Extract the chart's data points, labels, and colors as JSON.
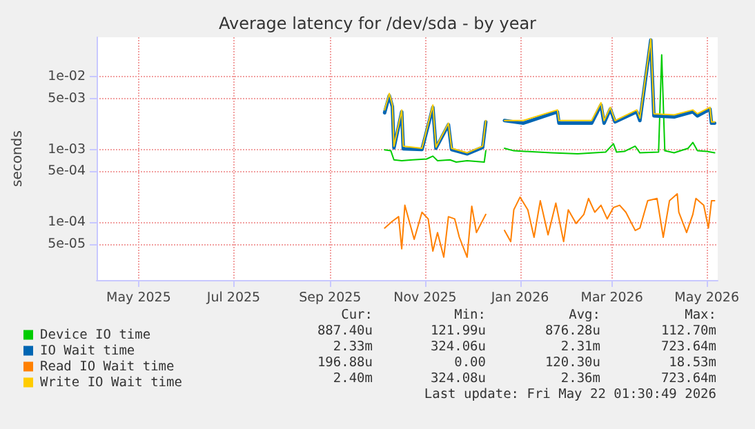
{
  "chart_data": {
    "type": "line",
    "title": "Average latency for /dev/sda - by year",
    "ylabel": "seconds",
    "log": "y",
    "grid": true,
    "legend": "bottom",
    "marker": "none",
    "line_style": "solid",
    "xlim": [
      "2025-04-19",
      "2026-05-23"
    ],
    "xticks": [
      {
        "value": "2025-05-16",
        "label": "May 2025"
      },
      {
        "value": "2025-07-16",
        "label": "Jul 2025"
      },
      {
        "value": "2025-09-16",
        "label": "Sep 2025"
      },
      {
        "value": "2025-11-16",
        "label": "Nov 2025"
      },
      {
        "value": "2026-01-16",
        "label": "Jan 2026"
      },
      {
        "value": "2026-03-16",
        "label": "Mar 2026"
      },
      {
        "value": "2026-05-16",
        "label": "May 2026"
      }
    ],
    "ylim": [
      1.6e-05,
      0.035
    ],
    "yticks": [
      {
        "value": 5e-05,
        "label": "5e-05"
      },
      {
        "value": 0.0001,
        "label": "1e-04"
      },
      {
        "value": 0.0005,
        "label": "5e-04"
      },
      {
        "value": 0.001,
        "label": "1e-03"
      },
      {
        "value": 0.005,
        "label": "5e-03"
      },
      {
        "value": 0.01,
        "label": "1e-02"
      }
    ],
    "series": [
      {
        "name": "Device IO time",
        "color": "#00cc00",
        "x": [
          "2025-10-21",
          "2025-10-25",
          "2025-10-27",
          "2025-11-01",
          "2025-11-08",
          "2025-11-17",
          "2025-11-21",
          "2025-11-24",
          "2025-12-02",
          "2025-12-06",
          "2025-12-13",
          "2025-12-24",
          "2025-12-25",
          "2025-12-30",
          "2026-01-06",
          "2026-01-12",
          "2026-02-05",
          "2026-02-22",
          "2026-03-12",
          "2026-03-17",
          "2026-03-19",
          "2026-03-24",
          "2026-03-31",
          "2026-04-03",
          "2026-04-15",
          "2026-04-17",
          "2026-04-19",
          "2026-04-25",
          "2026-05-04",
          "2026-05-07",
          "2026-05-10",
          "2026-05-16",
          "2026-05-21"
        ],
        "values": [
          0.00099,
          0.00096,
          0.00072,
          0.0007,
          0.00072,
          0.00074,
          0.00081,
          0.0007,
          0.00072,
          0.00067,
          0.0007,
          0.00067,
          0.00096,
          null,
          0.00104,
          0.00096,
          0.0009,
          0.00087,
          0.00092,
          0.0012,
          0.00092,
          0.00094,
          0.00111,
          0.0009,
          0.00092,
          0.02,
          0.00096,
          0.0009,
          0.00104,
          0.00125,
          0.00096,
          0.00094,
          0.0009
        ]
      },
      {
        "name": "IO Wait time",
        "color": "#0066b3",
        "x": [
          "2025-10-21",
          "2025-10-24",
          "2025-10-26",
          "2025-10-27",
          "2025-11-01",
          "2025-11-02",
          "2025-11-14",
          "2025-11-21",
          "2025-11-23",
          "2025-12-01",
          "2025-12-03",
          "2025-12-13",
          "2025-12-23",
          "2025-12-25",
          "2025-12-30",
          "2026-01-06",
          "2026-01-18",
          "2026-02-09",
          "2026-02-10",
          "2026-03-03",
          "2026-03-09",
          "2026-03-11",
          "2026-03-15",
          "2026-03-18",
          "2026-04-01",
          "2026-04-03",
          "2026-04-10",
          "2026-04-12",
          "2026-04-25",
          "2026-05-07",
          "2026-05-10",
          "2026-05-18",
          "2026-05-19",
          "2026-05-21"
        ],
        "values": [
          0.0032,
          0.0055,
          0.0039,
          0.00105,
          0.0033,
          0.00102,
          0.001,
          0.0038,
          0.00104,
          0.0022,
          0.001,
          0.00087,
          0.00107,
          0.0024,
          null,
          0.0025,
          0.0023,
          0.0033,
          0.0023,
          0.0023,
          0.0041,
          0.0023,
          0.0036,
          0.0024,
          0.0033,
          0.0025,
          0.032,
          0.0029,
          0.0028,
          0.0033,
          0.0029,
          0.0036,
          0.0023,
          0.0023
        ]
      },
      {
        "name": "Read IO Wait time",
        "color": "#ff8000",
        "x": [
          "2025-10-21",
          "2025-10-26",
          "2025-10-30",
          "2025-11-01",
          "2025-11-03",
          "2025-11-09",
          "2025-11-14",
          "2025-11-18",
          "2025-11-21",
          "2025-11-24",
          "2025-11-28",
          "2025-12-01",
          "2025-12-05",
          "2025-12-08",
          "2025-12-13",
          "2025-12-16",
          "2025-12-19",
          "2025-12-25",
          "2025-12-30",
          "2026-01-06",
          "2026-01-10",
          "2026-01-12",
          "2026-01-16",
          "2026-01-21",
          "2026-01-25",
          "2026-01-29",
          "2026-02-03",
          "2026-02-08",
          "2026-02-13",
          "2026-02-16",
          "2026-02-21",
          "2026-02-26",
          "2026-03-01",
          "2026-03-05",
          "2026-03-09",
          "2026-03-13",
          "2026-03-17",
          "2026-03-21",
          "2026-03-25",
          "2026-03-31",
          "2026-04-03",
          "2026-04-08",
          "2026-04-14",
          "2026-04-18",
          "2026-04-22",
          "2026-04-27",
          "2026-04-28",
          "2026-05-03",
          "2026-05-07",
          "2026-05-09",
          "2026-05-14",
          "2026-05-17",
          "2026-05-19",
          "2026-05-21"
        ],
        "values": [
          8.3e-05,
          0.000103,
          0.000119,
          4.3e-05,
          0.000171,
          5.8e-05,
          0.000137,
          0.000111,
          4e-05,
          7.2e-05,
          3.3e-05,
          0.000119,
          0.000111,
          6.2e-05,
          3.3e-05,
          0.000166,
          7.2e-05,
          0.000128,
          null,
          7.7e-05,
          5.4e-05,
          0.000148,
          0.000221,
          0.000148,
          6.2e-05,
          0.000197,
          6.7e-05,
          0.000183,
          5.4e-05,
          0.000148,
          9.6e-05,
          0.000128,
          0.000212,
          0.000137,
          0.000171,
          0.000111,
          0.000159,
          0.000171,
          0.000137,
          7.7e-05,
          8.3e-05,
          0.000197,
          0.000212,
          6.2e-05,
          0.000197,
          0.000245,
          0.000137,
          7.2e-05,
          0.000128,
          0.000212,
          0.000171,
          8.3e-05,
          0.000197,
          0.000197
        ]
      },
      {
        "name": "Write IO Wait time",
        "color": "#ffcc00",
        "x": [
          "2025-10-21",
          "2025-10-24",
          "2025-10-26",
          "2025-10-27",
          "2025-11-01",
          "2025-11-02",
          "2025-11-14",
          "2025-11-21",
          "2025-11-23",
          "2025-12-01",
          "2025-12-03",
          "2025-12-13",
          "2025-12-23",
          "2025-12-25",
          "2025-12-30",
          "2026-01-06",
          "2026-01-18",
          "2026-02-09",
          "2026-02-10",
          "2026-03-03",
          "2026-03-09",
          "2026-03-11",
          "2026-03-15",
          "2026-03-18",
          "2026-04-01",
          "2026-04-03",
          "2026-04-10",
          "2026-04-12",
          "2026-04-25",
          "2026-05-07",
          "2026-05-10",
          "2026-05-18",
          "2026-05-19",
          "2026-05-21"
        ],
        "values": [
          0.0035,
          0.0059,
          0.0041,
          0.00111,
          0.0035,
          0.00111,
          0.00104,
          0.0041,
          0.00108,
          0.0023,
          0.00104,
          0.0009,
          0.00111,
          0.0025,
          null,
          0.0025,
          0.0025,
          0.0035,
          0.0025,
          0.0025,
          0.0044,
          0.0025,
          0.0038,
          0.0025,
          0.0035,
          0.0027,
          0.033,
          0.0031,
          0.003,
          0.0035,
          0.0031,
          0.0038,
          0.0024,
          0.0024
        ]
      }
    ],
    "annotations": [
      "Cur:",
      "Min:",
      "Avg:",
      "Max:",
      "887.40u",
      "121.99u",
      "876.28u",
      "112.70m",
      "2.33m",
      "324.06u",
      "2.31m",
      "723.64m",
      "196.88u",
      "0.00",
      "120.30u",
      "18.53m",
      "2.40m",
      "324.08u",
      "2.36m",
      "723.64m",
      "Last update: Fri May 22 01:30:49 2026"
    ]
  }
}
